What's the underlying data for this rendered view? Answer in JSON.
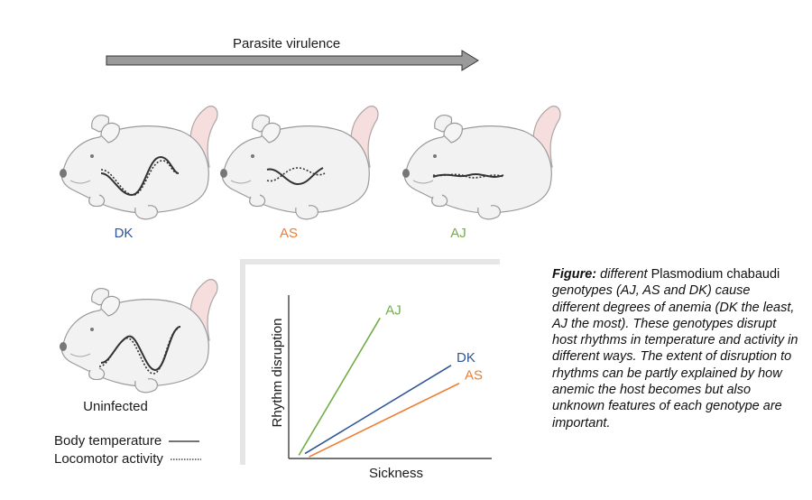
{
  "header": {
    "arrow_label": "Parasite virulence"
  },
  "mice": [
    {
      "label": "DK",
      "color": "#2f5597"
    },
    {
      "label": "AS",
      "color": "#ed7d31"
    },
    {
      "label": "AJ",
      "color": "#70ad47"
    }
  ],
  "uninfected": {
    "label": "Uninfected"
  },
  "legend": {
    "body_temperature": "Body temperature",
    "locomotor_activity": "Locomotor activity"
  },
  "chart_data": {
    "type": "line",
    "xlabel": "Sickness",
    "ylabel": "Rhythm disruption",
    "series": [
      {
        "name": "AJ",
        "color": "#70ad47",
        "points": [
          [
            0.05,
            0.02
          ],
          [
            0.45,
            0.86
          ]
        ]
      },
      {
        "name": "DK",
        "color": "#2f5597",
        "points": [
          [
            0.08,
            0.03
          ],
          [
            0.8,
            0.57
          ]
        ]
      },
      {
        "name": "AS",
        "color": "#ed7d31",
        "points": [
          [
            0.1,
            0.01
          ],
          [
            0.84,
            0.46
          ]
        ]
      }
    ]
  },
  "caption": {
    "figure_label": "Figure:",
    "part1": " different ",
    "species": "Plasmodium chabaudi",
    "part2": " genotypes (AJ, AS and DK) cause different degrees of anemia (DK the least, AJ the most). These genotypes disrupt host rhythms in temperature and activity in different ways. The extent of disruption to rhythms can be partly explained by how anemic the host becomes but also unknown features of each genotype are important."
  }
}
